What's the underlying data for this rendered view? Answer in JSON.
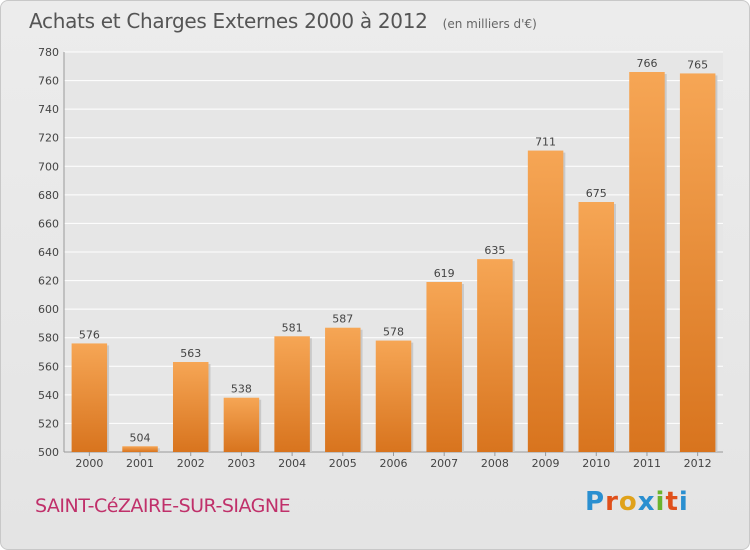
{
  "header": {
    "title": "Achats et Charges Externes 2000 à 2012",
    "unit": "(en milliers d'€)"
  },
  "commune": "SAINT-CéZAIRE-SUR-SIAGNE",
  "logo": {
    "text": "Proxiti",
    "letters": [
      "P",
      "r",
      "o",
      "x",
      "i",
      "t",
      "i"
    ],
    "colors": [
      "#2a8fd0",
      "#e0501a",
      "#e0a21a",
      "#2a8fd0",
      "#6ab42d",
      "#e0501a",
      "#2a8fd0"
    ]
  },
  "colors": {
    "bar_top": "#f6a655",
    "bar_bottom": "#d8741e",
    "grid": "#ffffff",
    "plot_bg": "#e6e6e6"
  },
  "chart_data": {
    "type": "bar",
    "title": "Achats et Charges Externes 2000 à 2012",
    "subtitle": "(en milliers d'€)",
    "categories": [
      "2000",
      "2001",
      "2002",
      "2003",
      "2004",
      "2005",
      "2006",
      "2007",
      "2008",
      "2009",
      "2010",
      "2011",
      "2012"
    ],
    "values": [
      576,
      504,
      563,
      538,
      581,
      587,
      578,
      619,
      635,
      711,
      675,
      766,
      765
    ],
    "ylim": [
      500,
      780
    ],
    "yticks": [
      500,
      520,
      540,
      560,
      580,
      600,
      620,
      640,
      660,
      680,
      700,
      720,
      740,
      760,
      780
    ],
    "grid": true,
    "data_labels": true
  }
}
